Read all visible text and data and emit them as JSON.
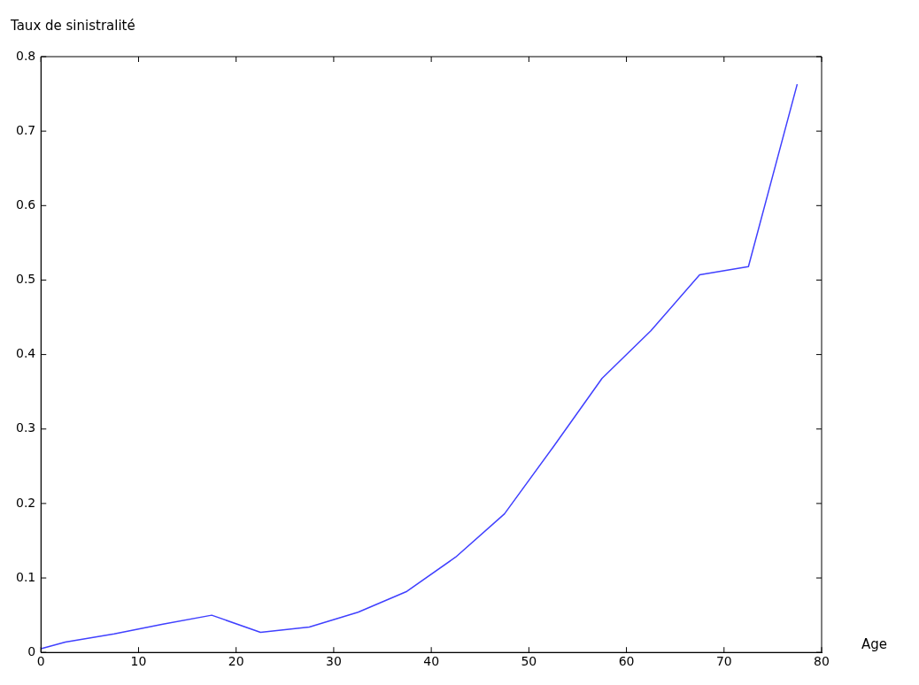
{
  "chart_data": {
    "type": "line",
    "xlabel": "Age",
    "ylabel": "Taux de sinistralité",
    "x": [
      0,
      2.5,
      7.5,
      12.5,
      17.5,
      22.5,
      27.5,
      32.5,
      37.5,
      42.5,
      47.5,
      52.5,
      57.5,
      62.5,
      67.5,
      72.5,
      77.5
    ],
    "series": [
      {
        "color": "#4040ff",
        "values": [
          0.005,
          0.014,
          0.025,
          0.038,
          0.05,
          0.027,
          0.034,
          0.054,
          0.082,
          0.128,
          0.186,
          0.276,
          0.368,
          0.432,
          0.507,
          0.518,
          0.763
        ]
      }
    ],
    "xlim": [
      0,
      80
    ],
    "xticks": [
      0,
      10,
      20,
      30,
      40,
      50,
      60,
      70,
      80
    ],
    "ylim": [
      0,
      0.8
    ],
    "yticks": [
      0,
      0.1,
      0.2,
      0.3,
      0.4,
      0.5,
      0.6,
      0.7,
      0.8
    ],
    "grid": false,
    "legend": false,
    "marker": "none",
    "line_style": "solid"
  }
}
